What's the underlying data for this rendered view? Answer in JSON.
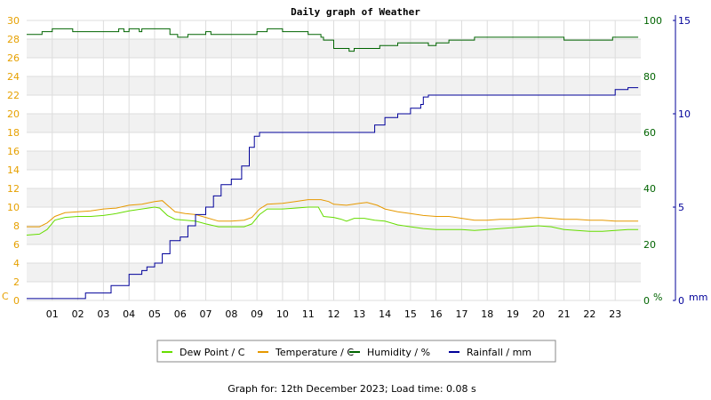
{
  "chart_data": {
    "type": "line",
    "title": "Daily graph of Weather",
    "footer": "Graph for: 12th December 2023; Load time: 0.08 s",
    "x_range": [
      0,
      24
    ],
    "x_ticks": [
      "01",
      "02",
      "03",
      "04",
      "05",
      "06",
      "07",
      "08",
      "09",
      "10",
      "11",
      "12",
      "13",
      "14",
      "15",
      "16",
      "17",
      "18",
      "19",
      "20",
      "21",
      "22",
      "23"
    ],
    "axes": {
      "temperature": {
        "label": "C",
        "range": [
          0,
          30
        ],
        "ticks": [
          "0",
          "2",
          "4",
          "6",
          "8",
          "10",
          "12",
          "14",
          "16",
          "18",
          "20",
          "22",
          "24",
          "26",
          "28",
          "30"
        ],
        "color": "#e6a000"
      },
      "humidity": {
        "label": "%",
        "range": [
          0,
          100
        ],
        "ticks": [
          "0",
          "20",
          "40",
          "60",
          "80",
          "100"
        ],
        "color": "#006400"
      },
      "rainfall": {
        "label": "mm",
        "range": [
          0,
          15
        ],
        "ticks": [
          "0",
          "5",
          "10",
          "15"
        ],
        "color": "#000099"
      }
    },
    "legend": {
      "placement": "bottom-center"
    },
    "grid": true,
    "series": [
      {
        "name": "Dew Point / C",
        "axis": "temperature",
        "color": "#66dd00",
        "points": [
          [
            0,
            7.0
          ],
          [
            0.5,
            7.1
          ],
          [
            0.8,
            7.6
          ],
          [
            1.1,
            8.6
          ],
          [
            1.5,
            8.9
          ],
          [
            2,
            9.0
          ],
          [
            2.5,
            9.0
          ],
          [
            3,
            9.1
          ],
          [
            3.5,
            9.3
          ],
          [
            4,
            9.6
          ],
          [
            4.5,
            9.8
          ],
          [
            5,
            10.0
          ],
          [
            5.2,
            9.9
          ],
          [
            5.5,
            9.1
          ],
          [
            5.8,
            8.7
          ],
          [
            6.2,
            8.6
          ],
          [
            6.6,
            8.5
          ],
          [
            7,
            8.2
          ],
          [
            7.5,
            7.9
          ],
          [
            8,
            7.9
          ],
          [
            8.5,
            7.9
          ],
          [
            8.8,
            8.2
          ],
          [
            9.1,
            9.2
          ],
          [
            9.4,
            9.8
          ],
          [
            10,
            9.8
          ],
          [
            10.5,
            9.9
          ],
          [
            11,
            10.0
          ],
          [
            11.4,
            10.0
          ],
          [
            11.6,
            9.0
          ],
          [
            12,
            8.9
          ],
          [
            12.3,
            8.7
          ],
          [
            12.5,
            8.5
          ],
          [
            12.8,
            8.8
          ],
          [
            13.2,
            8.8
          ],
          [
            13.6,
            8.6
          ],
          [
            14,
            8.5
          ],
          [
            14.5,
            8.1
          ],
          [
            15,
            7.9
          ],
          [
            15.5,
            7.7
          ],
          [
            16,
            7.6
          ],
          [
            16.5,
            7.6
          ],
          [
            17,
            7.6
          ],
          [
            17.5,
            7.5
          ],
          [
            18,
            7.6
          ],
          [
            19,
            7.8
          ],
          [
            20,
            8.0
          ],
          [
            20.5,
            7.9
          ],
          [
            21,
            7.6
          ],
          [
            21.5,
            7.5
          ],
          [
            22,
            7.4
          ],
          [
            22.5,
            7.4
          ],
          [
            23,
            7.5
          ],
          [
            23.5,
            7.6
          ],
          [
            23.9,
            7.6
          ]
        ]
      },
      {
        "name": "Temperature / C",
        "axis": "temperature",
        "color": "#e69900",
        "points": [
          [
            0,
            7.9
          ],
          [
            0.5,
            7.9
          ],
          [
            0.8,
            8.3
          ],
          [
            1.1,
            9.0
          ],
          [
            1.5,
            9.4
          ],
          [
            2,
            9.5
          ],
          [
            2.5,
            9.6
          ],
          [
            3,
            9.8
          ],
          [
            3.5,
            9.9
          ],
          [
            4,
            10.2
          ],
          [
            4.5,
            10.3
          ],
          [
            5,
            10.6
          ],
          [
            5.3,
            10.7
          ],
          [
            5.5,
            10.2
          ],
          [
            5.8,
            9.5
          ],
          [
            6.2,
            9.3
          ],
          [
            6.6,
            9.2
          ],
          [
            7,
            8.9
          ],
          [
            7.5,
            8.5
          ],
          [
            8,
            8.5
          ],
          [
            8.5,
            8.6
          ],
          [
            8.8,
            8.9
          ],
          [
            9.1,
            9.8
          ],
          [
            9.4,
            10.3
          ],
          [
            10,
            10.4
          ],
          [
            10.5,
            10.6
          ],
          [
            11,
            10.8
          ],
          [
            11.5,
            10.8
          ],
          [
            11.8,
            10.6
          ],
          [
            12,
            10.3
          ],
          [
            12.5,
            10.2
          ],
          [
            13,
            10.4
          ],
          [
            13.3,
            10.5
          ],
          [
            13.7,
            10.2
          ],
          [
            14,
            9.8
          ],
          [
            14.5,
            9.5
          ],
          [
            15,
            9.3
          ],
          [
            15.5,
            9.1
          ],
          [
            16,
            9.0
          ],
          [
            16.5,
            9.0
          ],
          [
            17,
            8.8
          ],
          [
            17.5,
            8.6
          ],
          [
            18,
            8.6
          ],
          [
            18.5,
            8.7
          ],
          [
            19,
            8.7
          ],
          [
            19.5,
            8.8
          ],
          [
            20,
            8.9
          ],
          [
            20.5,
            8.8
          ],
          [
            21,
            8.7
          ],
          [
            21.5,
            8.7
          ],
          [
            22,
            8.6
          ],
          [
            22.5,
            8.6
          ],
          [
            23,
            8.5
          ],
          [
            23.5,
            8.5
          ],
          [
            23.9,
            8.5
          ]
        ]
      },
      {
        "name": "Humidity / %",
        "axis": "humidity",
        "color": "#006400",
        "points": [
          [
            0,
            95
          ],
          [
            0.5,
            95
          ],
          [
            0.6,
            96
          ],
          [
            1,
            97
          ],
          [
            1.7,
            97
          ],
          [
            1.8,
            96
          ],
          [
            2.5,
            96
          ],
          [
            3,
            96
          ],
          [
            3.5,
            96
          ],
          [
            3.6,
            97
          ],
          [
            3.8,
            96
          ],
          [
            4,
            97
          ],
          [
            4.3,
            97
          ],
          [
            4.4,
            96
          ],
          [
            4.5,
            97
          ],
          [
            5,
            97
          ],
          [
            5.5,
            97
          ],
          [
            5.6,
            95
          ],
          [
            5.9,
            94
          ],
          [
            6.2,
            94
          ],
          [
            6.3,
            95
          ],
          [
            6.8,
            95
          ],
          [
            7,
            96
          ],
          [
            7.2,
            95
          ],
          [
            8,
            95
          ],
          [
            9,
            96
          ],
          [
            9.1,
            96
          ],
          [
            9.4,
            97
          ],
          [
            10,
            96
          ],
          [
            11,
            95
          ],
          [
            11.5,
            94
          ],
          [
            11.6,
            93
          ],
          [
            12,
            90
          ],
          [
            12.4,
            90
          ],
          [
            12.6,
            89
          ],
          [
            12.8,
            90
          ],
          [
            13,
            90
          ],
          [
            13.5,
            90
          ],
          [
            13.8,
            91
          ],
          [
            14,
            91
          ],
          [
            14.5,
            92
          ],
          [
            15,
            92
          ],
          [
            15.6,
            92
          ],
          [
            15.7,
            91
          ],
          [
            16,
            92
          ],
          [
            16.5,
            93
          ],
          [
            17,
            93
          ],
          [
            17.5,
            94
          ],
          [
            18,
            94
          ],
          [
            19,
            94
          ],
          [
            20,
            94
          ],
          [
            21,
            93
          ],
          [
            22,
            93
          ],
          [
            22.8,
            93
          ],
          [
            22.9,
            94
          ],
          [
            23.9,
            94
          ]
        ]
      },
      {
        "name": "Rainfall / mm",
        "axis": "rainfall",
        "color": "#000099",
        "points": [
          [
            0,
            0.1
          ],
          [
            1.4,
            0.1
          ],
          [
            2.2,
            0.1
          ],
          [
            2.3,
            0.4
          ],
          [
            3,
            0.4
          ],
          [
            3.3,
            0.8
          ],
          [
            3.8,
            0.8
          ],
          [
            4,
            1.4
          ],
          [
            4.5,
            1.6
          ],
          [
            4.7,
            1.8
          ],
          [
            5,
            2.0
          ],
          [
            5.3,
            2.5
          ],
          [
            5.6,
            3.2
          ],
          [
            6,
            3.4
          ],
          [
            6.3,
            4.0
          ],
          [
            6.6,
            4.6
          ],
          [
            7,
            5.0
          ],
          [
            7.3,
            5.6
          ],
          [
            7.6,
            6.2
          ],
          [
            8,
            6.5
          ],
          [
            8.4,
            7.2
          ],
          [
            8.7,
            8.2
          ],
          [
            8.9,
            8.8
          ],
          [
            9.1,
            9.0
          ],
          [
            9.4,
            9.0
          ],
          [
            11,
            9.0
          ],
          [
            12,
            9.0
          ],
          [
            13,
            9.0
          ],
          [
            13.5,
            9.0
          ],
          [
            13.6,
            9.4
          ],
          [
            14,
            9.8
          ],
          [
            14.5,
            10.0
          ],
          [
            15,
            10.3
          ],
          [
            15.4,
            10.5
          ],
          [
            15.5,
            10.9
          ],
          [
            15.7,
            11.0
          ],
          [
            16,
            11.0
          ],
          [
            17,
            11.0
          ],
          [
            18,
            11.0
          ],
          [
            19,
            11.0
          ],
          [
            20,
            11.0
          ],
          [
            21,
            11.0
          ],
          [
            22,
            11.0
          ],
          [
            22.9,
            11.0
          ],
          [
            23,
            11.3
          ],
          [
            23.5,
            11.4
          ],
          [
            23.9,
            11.4
          ]
        ]
      }
    ]
  }
}
